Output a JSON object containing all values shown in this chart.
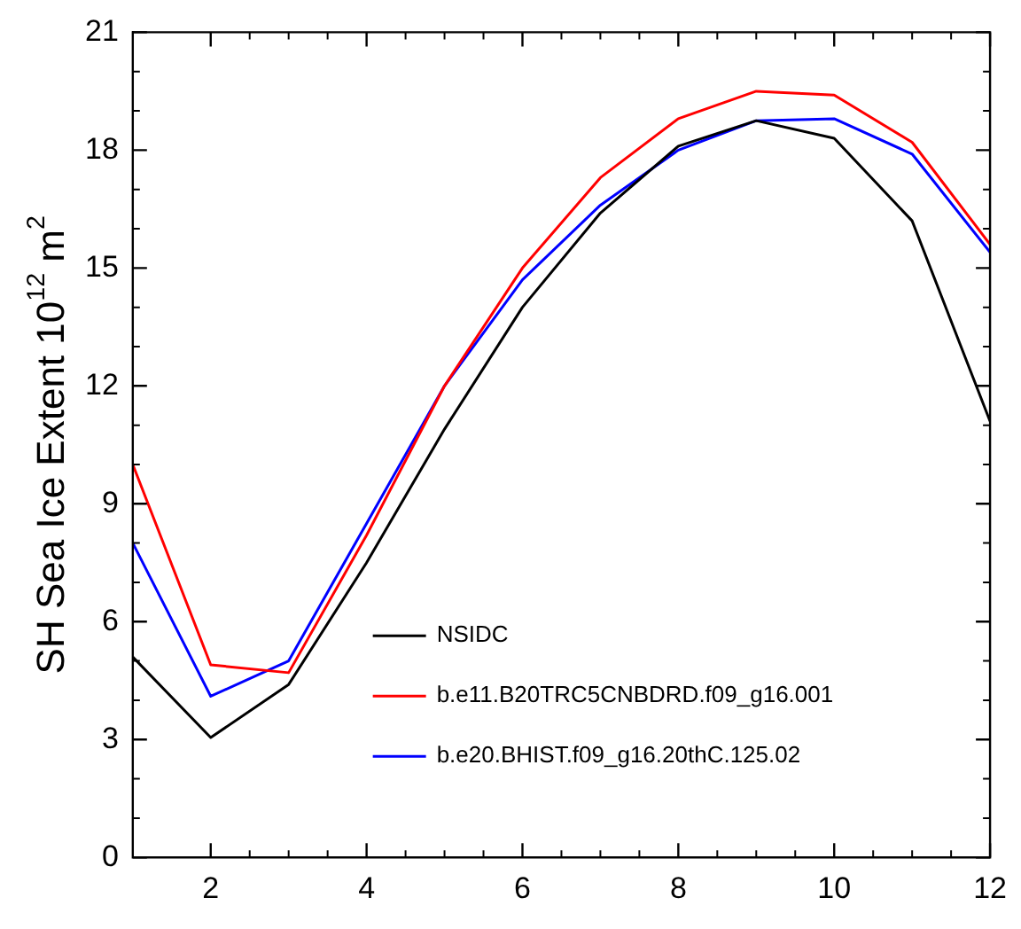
{
  "chart_data": {
    "type": "line",
    "ylabel": "SH Sea Ice Extent 10$^{12}$ m$^{2}$",
    "x": [
      1,
      2,
      3,
      4,
      5,
      6,
      7,
      8,
      9,
      10,
      11,
      12
    ],
    "xlim": [
      1,
      12
    ],
    "xticks": [
      2,
      4,
      6,
      8,
      10,
      12
    ],
    "ylim": [
      0,
      21
    ],
    "yticks": [
      0,
      3,
      6,
      9,
      12,
      15,
      18,
      21
    ],
    "grid": false,
    "legend": "bottom right",
    "marker": "none",
    "line_style": "solid",
    "series": [
      {
        "name": "NSIDC",
        "color": "#000000",
        "values": [
          5.1,
          3.05,
          4.4,
          7.5,
          10.9,
          14.0,
          16.4,
          18.1,
          18.75,
          18.3,
          16.2,
          11.1
        ]
      },
      {
        "name": "b.e11.B20TRC5CNBDRD.f09_g16.001",
        "color": "#ff0000",
        "values": [
          10.0,
          4.9,
          4.7,
          8.2,
          12.0,
          15.0,
          17.3,
          18.8,
          19.5,
          19.4,
          18.2,
          15.6
        ]
      },
      {
        "name": "b.e20.BHIST.f09_g16.20thC.125.02",
        "color": "#0000ff",
        "values": [
          8.0,
          4.1,
          5.0,
          8.5,
          12.0,
          14.7,
          16.6,
          18.0,
          18.75,
          18.8,
          17.9,
          15.4
        ]
      }
    ]
  }
}
